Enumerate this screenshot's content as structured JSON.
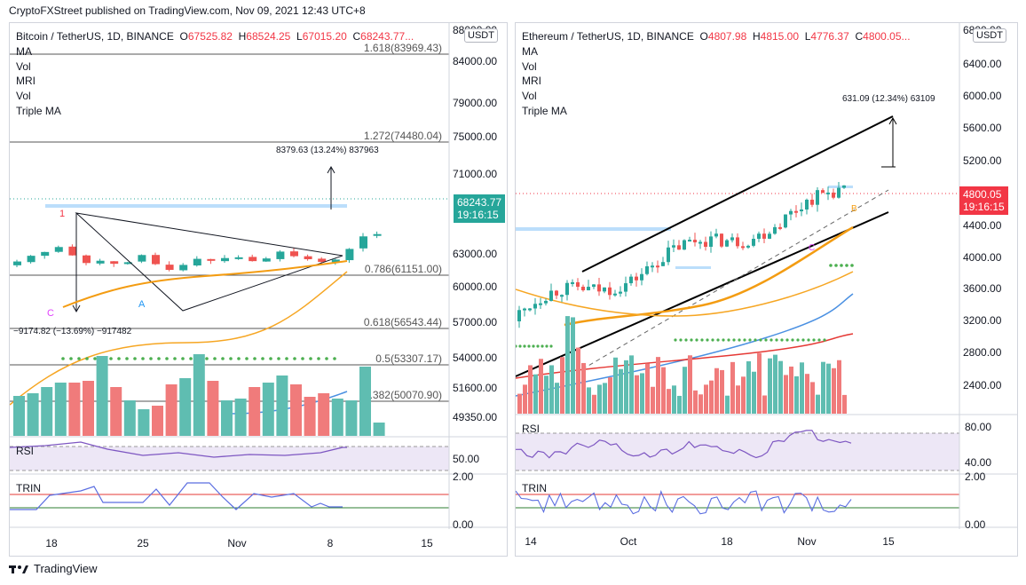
{
  "header": {
    "publisher": "CryptoFXStreet published on TradingView.com, Nov 09, 2021 12:43 UTC+8"
  },
  "footer": {
    "brand": "TradingView"
  },
  "colors": {
    "up": "#26a69a",
    "down": "#ef5350",
    "volUp": "#5fbdb1",
    "volDown": "#f07b7b",
    "rsi": "#7e57c2",
    "trin": "#5b6ee1",
    "ma": "#f6a623",
    "maBlue": "#4a90e2",
    "maRed": "#e53935",
    "price": "#f23645"
  },
  "btc": {
    "symbol": "Bitcoin / TetherUS, 1D, BINANCE",
    "o_label": "O",
    "o": "67525.82",
    "h_label": "H",
    "h": "68524.25",
    "l_label": "L",
    "l": "67015.20",
    "c_label": "C",
    "c": "68243.77...",
    "indicators": [
      "MA",
      "Vol",
      "MRI",
      "Vol",
      "Triple MA"
    ],
    "currency": "USDT",
    "last_price": "68243.77",
    "countdown": "19:16:15",
    "price_axis": [
      "88000.00",
      "84000.00",
      "79000.00",
      "75000.00",
      "71000.00",
      "63000.00",
      "60000.00",
      "57000.00",
      "54000.00",
      "51600.00",
      "49350.00"
    ],
    "fib": [
      {
        "label": "1.618(83969.43)",
        "price": 83969.43
      },
      {
        "label": "1.272(74480.04)",
        "price": 74480.04
      },
      {
        "label": "0.786(61151.00)",
        "price": 61151.0
      },
      {
        "label": "0.618(56543.44)",
        "price": 56543.44
      },
      {
        "label": "0.5(53307.17)",
        "price": 53307.17
      },
      {
        "label": "0.382(50070.90)",
        "price": 50070.9
      }
    ],
    "target_label": "8379.63 (13.24%) 837963",
    "drop_label": "−9174.82 (−13.69%) −917482",
    "markers": {
      "one": "1",
      "a": "A",
      "c": "C"
    },
    "rsi_title": "RSI",
    "rsi_axis": "50.00",
    "trin_title": "TRIN",
    "trin_axis": [
      "2.00",
      "0.00"
    ],
    "x_axis": [
      "18",
      "25",
      "Nov",
      "8",
      "15"
    ]
  },
  "eth": {
    "symbol": "Ethereum / TetherUS, 1D, BINANCE",
    "o_label": "O",
    "o": "4807.98",
    "h_label": "H",
    "h": "4815.00",
    "l_label": "L",
    "l": "4776.37",
    "c_label": "C",
    "c": "4800.05...",
    "indicators": [
      "MA",
      "Vol",
      "MRI",
      "Vol",
      "Triple MA"
    ],
    "currency": "USDT",
    "last_price": "4800.05",
    "countdown": "19:16:15",
    "price_axis": [
      "6800.00",
      "6400.00",
      "6000.00",
      "5600.00",
      "5200.00",
      "4400.00",
      "4000.00",
      "3600.00",
      "3200.00",
      "2800.00",
      "2400.00"
    ],
    "target_label": "631.09 (12.34%) 63109",
    "markers": {
      "b": "B",
      "c": "C"
    },
    "rsi_title": "RSI",
    "rsi_axis": [
      "80.00",
      "40.00"
    ],
    "trin_title": "TRIN",
    "trin_axis": [
      "2.00",
      "0.00"
    ],
    "x_axis": [
      "14",
      "Oct",
      "18",
      "Nov",
      "15"
    ]
  }
}
